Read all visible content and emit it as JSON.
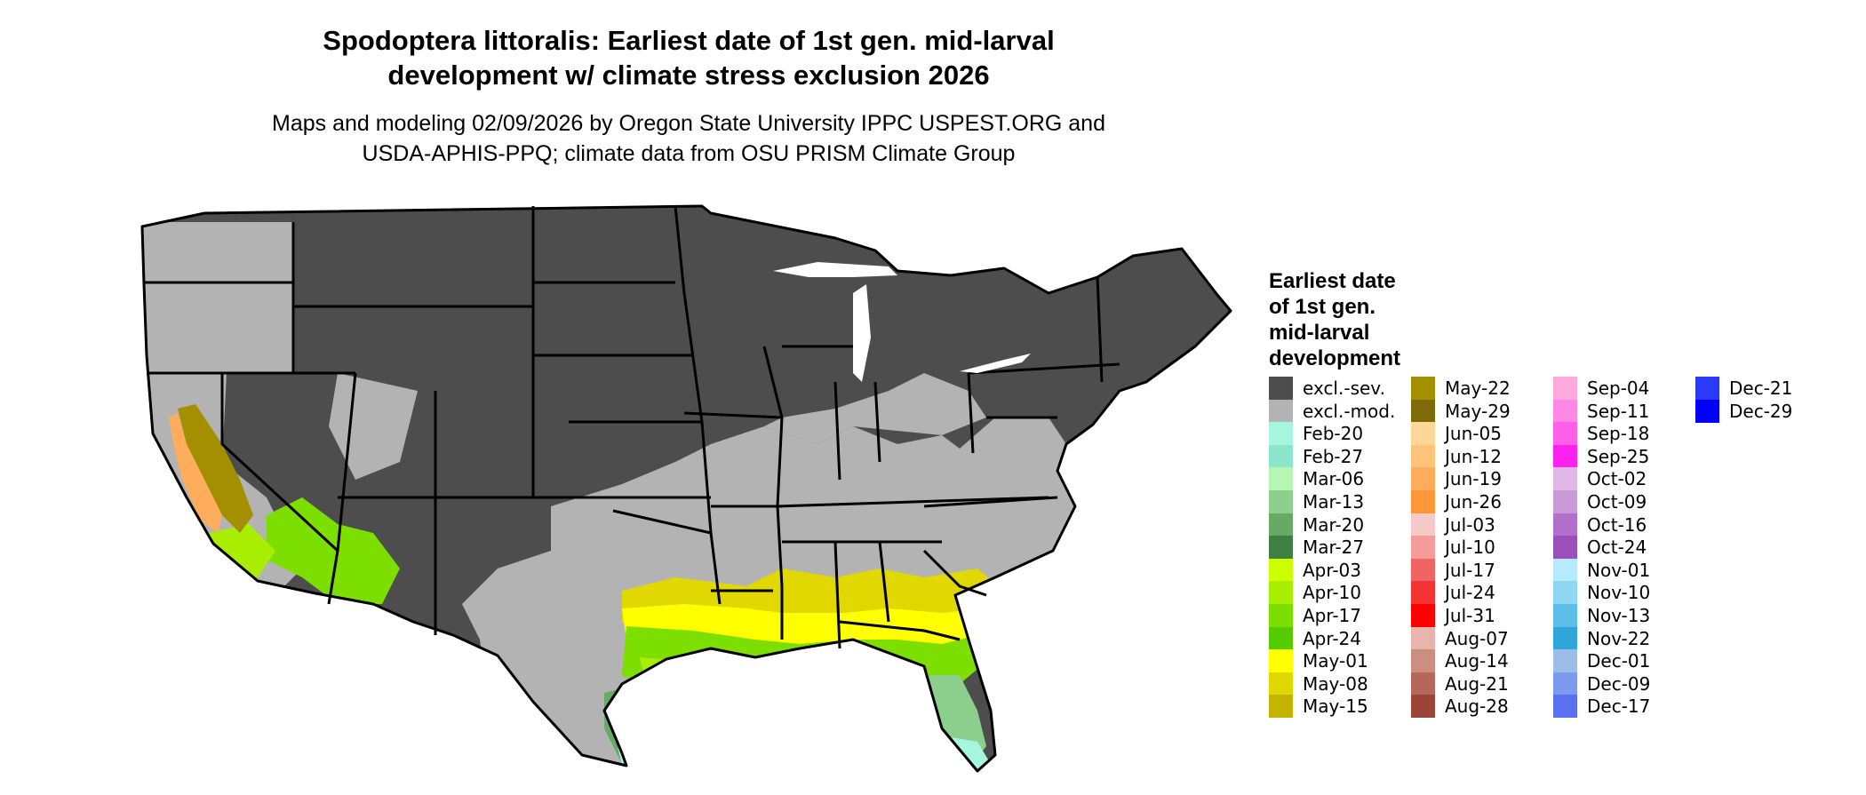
{
  "title_line1": "Spodoptera littoralis: Earliest date of 1st gen. mid-larval",
  "title_line2": "development w/ climate stress exclusion 2026",
  "subtitle_line1": "Maps and modeling 02/09/2026 by Oregon State University IPPC USPEST.ORG and",
  "subtitle_line2": "USDA-APHIS-PPQ; climate data from OSU PRISM Climate Group",
  "legend_title": [
    "Earliest date",
    "of 1st gen.",
    "mid-larval",
    "development"
  ],
  "legend": [
    {
      "label": "excl.-sev.",
      "color": "#4d4d4d"
    },
    {
      "label": "excl.-mod.",
      "color": "#b3b3b3"
    },
    {
      "label": "Feb-20",
      "color": "#a6f5de"
    },
    {
      "label": "Feb-27",
      "color": "#8ce6cc"
    },
    {
      "label": "Mar-06",
      "color": "#b7f5b3"
    },
    {
      "label": "Mar-13",
      "color": "#8ccf8c"
    },
    {
      "label": "Mar-20",
      "color": "#66aa66"
    },
    {
      "label": "Mar-27",
      "color": "#3f7f44"
    },
    {
      "label": "Apr-03",
      "color": "#ccff00"
    },
    {
      "label": "Apr-10",
      "color": "#a9ee00"
    },
    {
      "label": "Apr-17",
      "color": "#7ddf00"
    },
    {
      "label": "Apr-24",
      "color": "#55cc00"
    },
    {
      "label": "May-01",
      "color": "#ffff00"
    },
    {
      "label": "May-08",
      "color": "#e0d800"
    },
    {
      "label": "May-15",
      "color": "#c4b400"
    },
    {
      "label": "May-22",
      "color": "#a38f00"
    },
    {
      "label": "May-29",
      "color": "#7f6a0a"
    },
    {
      "label": "Jun-05",
      "color": "#ffd699"
    },
    {
      "label": "Jun-12",
      "color": "#ffc37a"
    },
    {
      "label": "Jun-19",
      "color": "#ffad5c"
    },
    {
      "label": "Jun-26",
      "color": "#ff9638"
    },
    {
      "label": "Jul-03",
      "color": "#f7caca"
    },
    {
      "label": "Jul-10",
      "color": "#f59c9c"
    },
    {
      "label": "Jul-17",
      "color": "#f06464"
    },
    {
      "label": "Jul-24",
      "color": "#f53333"
    },
    {
      "label": "Jul-31",
      "color": "#ff0000"
    },
    {
      "label": "Aug-07",
      "color": "#e8b4ac"
    },
    {
      "label": "Aug-14",
      "color": "#cc8e80"
    },
    {
      "label": "Aug-21",
      "color": "#b5685a"
    },
    {
      "label": "Aug-28",
      "color": "#9a4535"
    },
    {
      "label": "Sep-04",
      "color": "#ffaadd"
    },
    {
      "label": "Sep-11",
      "color": "#ff88e6"
    },
    {
      "label": "Sep-18",
      "color": "#ff5ee8"
    },
    {
      "label": "Sep-25",
      "color": "#ff22ee"
    },
    {
      "label": "Oct-02",
      "color": "#e0b8e8"
    },
    {
      "label": "Oct-09",
      "color": "#c99ad8"
    },
    {
      "label": "Oct-16",
      "color": "#b070cc"
    },
    {
      "label": "Oct-24",
      "color": "#9a50b8"
    },
    {
      "label": "Nov-01",
      "color": "#b5eaff"
    },
    {
      "label": "Nov-10",
      "color": "#8fd6f5"
    },
    {
      "label": "Nov-13",
      "color": "#5cbde6"
    },
    {
      "label": "Nov-22",
      "color": "#2ea6d9"
    },
    {
      "label": "Dec-01",
      "color": "#9bbde6"
    },
    {
      "label": "Dec-09",
      "color": "#7c9bef"
    },
    {
      "label": "Dec-17",
      "color": "#5a70f2"
    },
    {
      "label": "Dec-21",
      "color": "#2b3af8"
    },
    {
      "label": "Dec-29",
      "color": "#0000ff"
    }
  ]
}
